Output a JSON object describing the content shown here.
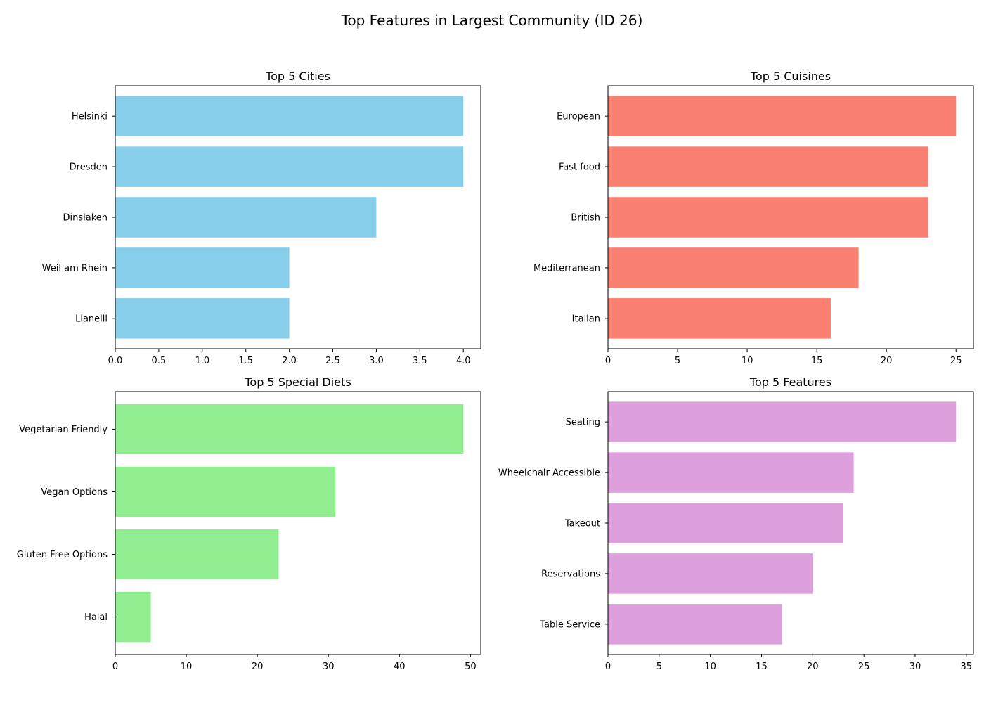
{
  "figure_title": "Top Features in Largest Community (ID 26)",
  "chart_data": [
    {
      "type": "bar",
      "orientation": "horizontal",
      "title": "Top 5 Cities",
      "categories": [
        "Helsinki",
        "Dresden",
        "Dinslaken",
        "Weil am Rhein",
        "Llanelli"
      ],
      "values": [
        4,
        4,
        3,
        2,
        2
      ],
      "color": "#87ceeb",
      "xlim": [
        0,
        4.2
      ],
      "xticks": [
        0,
        0.5,
        1,
        1.5,
        2,
        2.5,
        3,
        3.5,
        4
      ],
      "xtick_labels": [
        "0.0",
        "0.5",
        "1.0",
        "1.5",
        "2.0",
        "2.5",
        "3.0",
        "3.5",
        "4.0"
      ],
      "xlabel": "",
      "ylabel": "",
      "grid": false
    },
    {
      "type": "bar",
      "orientation": "horizontal",
      "title": "Top 5 Cuisines",
      "categories": [
        "European",
        "Fast food",
        "British",
        "Mediterranean",
        "Italian"
      ],
      "values": [
        25,
        23,
        23,
        18,
        16
      ],
      "color": "#fa8072",
      "xlim": [
        0,
        26.25
      ],
      "xticks": [
        0,
        5,
        10,
        15,
        20,
        25
      ],
      "xtick_labels": [
        "0",
        "5",
        "10",
        "15",
        "20",
        "25"
      ],
      "xlabel": "",
      "ylabel": "",
      "grid": false
    },
    {
      "type": "bar",
      "orientation": "horizontal",
      "title": "Top 5 Special Diets",
      "categories": [
        "Vegetarian Friendly",
        "Vegan Options",
        "Gluten Free Options",
        "Halal"
      ],
      "values": [
        49,
        31,
        23,
        5
      ],
      "color": "#90ee90",
      "xlim": [
        0,
        51.45
      ],
      "xticks": [
        0,
        10,
        20,
        30,
        40,
        50
      ],
      "xtick_labels": [
        "0",
        "10",
        "20",
        "30",
        "40",
        "50"
      ],
      "xlabel": "",
      "ylabel": "",
      "grid": false
    },
    {
      "type": "bar",
      "orientation": "horizontal",
      "title": "Top 5 Features",
      "categories": [
        "Seating",
        "Wheelchair Accessible",
        "Takeout",
        "Reservations",
        "Table Service"
      ],
      "values": [
        34,
        24,
        23,
        20,
        17
      ],
      "color": "#dda0dd",
      "xlim": [
        0,
        35.7
      ],
      "xticks": [
        0,
        5,
        10,
        15,
        20,
        25,
        30,
        35
      ],
      "xtick_labels": [
        "0",
        "5",
        "10",
        "15",
        "20",
        "25",
        "30",
        "35"
      ],
      "xlabel": "",
      "ylabel": "",
      "grid": false
    }
  ]
}
